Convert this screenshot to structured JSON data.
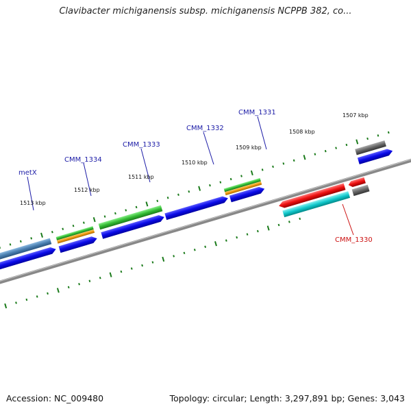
{
  "header": {
    "title": "Clavibacter michiganensis subsp. michiganensis NCPPB 382, co..."
  },
  "footer": {
    "accession": "Accession: NC_009480",
    "summary": "Topology: circular; Length: 3,297,891 bp; Genes: 3,043"
  },
  "scale_labels": [
    "1513 kbp",
    "1512 kbp",
    "1511 kbp",
    "1510 kbp",
    "1509 kbp",
    "1508 kbp",
    "1507 kbp"
  ],
  "gene_labels": [
    {
      "text": "metX",
      "color": "#1a1aa6"
    },
    {
      "text": "CMM_1334",
      "color": "#1a1aa6"
    },
    {
      "text": "CMM_1333",
      "color": "#1a1aa6"
    },
    {
      "text": "CMM_1332",
      "color": "#1a1aa6"
    },
    {
      "text": "CMM_1331",
      "color": "#1a1aa6"
    },
    {
      "text": "CMM_1330",
      "color": "#cc1111"
    }
  ],
  "colors": {
    "cds_blue": "#0a0ae8",
    "trna_green": "#33bb33",
    "orange": "#ee9911",
    "steel": "#4a7fb0",
    "red": "#ee1111",
    "cyan": "#11c8cc",
    "gray": "#666666",
    "backbone": "#888888",
    "tick": "#1a7a1a"
  }
}
